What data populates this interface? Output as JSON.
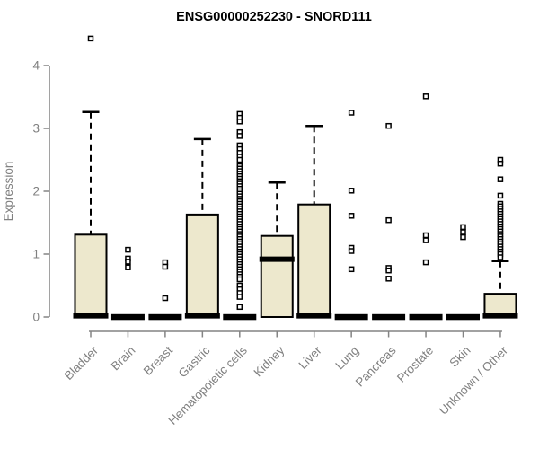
{
  "chart_data": {
    "type": "boxplot",
    "title": "ENSG00000252230 - SNORD111",
    "ylabel": "Expression",
    "xlabel": "",
    "ylim": [
      0,
      4
    ],
    "yticks": [
      0,
      1,
      2,
      3,
      4
    ],
    "grid": false,
    "legend": null,
    "colors": {
      "box_fill": "#EDE8CD",
      "box_stroke": "#000000",
      "axis_line": "#848484",
      "axis_text": "#808080",
      "background": "#FFFFFF",
      "outlier_fill": "#FFFFFF"
    },
    "categories": [
      "Bladder",
      "Brain",
      "Breast",
      "Gastric",
      "Hematopoietic cells",
      "Kidney",
      "Liver",
      "Lung",
      "Pancreas",
      "Prostate",
      "Skin",
      "Unknown / Other"
    ],
    "series": [
      {
        "category": "Bladder",
        "q1": 0,
        "median": 0.02,
        "q3": 1.31,
        "whisker_low": 0,
        "whisker_high": 3.26,
        "outliers": [
          4.43
        ]
      },
      {
        "category": "Brain",
        "q1": 0,
        "median": 0,
        "q3": 0,
        "whisker_low": 0,
        "whisker_high": 0,
        "outliers": [
          1.07,
          0.93,
          0.88,
          0.79
        ]
      },
      {
        "category": "Breast",
        "q1": 0,
        "median": 0,
        "q3": 0,
        "whisker_low": 0,
        "whisker_high": 0,
        "outliers": [
          0.87,
          0.8,
          0.3
        ]
      },
      {
        "category": "Gastric",
        "q1": 0,
        "median": 0.02,
        "q3": 1.63,
        "whisker_low": 0,
        "whisker_high": 2.83,
        "outliers": []
      },
      {
        "category": "Hematopoietic cells",
        "q1": 0,
        "median": 0,
        "q3": 0,
        "whisker_low": 0,
        "whisker_high": 0,
        "outliers": [
          3.23,
          3.17,
          3.11,
          2.94,
          2.88,
          2.73,
          2.67,
          2.61,
          2.55,
          2.5,
          2.4,
          2.36,
          2.32,
          2.28,
          2.24,
          2.2,
          2.16,
          2.12,
          2.08,
          2.04,
          2.0,
          1.96,
          1.92,
          1.88,
          1.84,
          1.8,
          1.76,
          1.72,
          1.68,
          1.64,
          1.6,
          1.56,
          1.52,
          1.48,
          1.44,
          1.4,
          1.36,
          1.32,
          1.28,
          1.24,
          1.2,
          1.16,
          1.12,
          1.08,
          1.04,
          1.0,
          0.96,
          0.92,
          0.88,
          0.84,
          0.8,
          0.76,
          0.72,
          0.68,
          0.64,
          0.6,
          0.5,
          0.44,
          0.38,
          0.32,
          0.16
        ]
      },
      {
        "category": "Kidney",
        "q1": 0,
        "median": 0.92,
        "q3": 1.29,
        "whisker_low": 0,
        "whisker_high": 2.14,
        "outliers": []
      },
      {
        "category": "Liver",
        "q1": 0,
        "median": 0.02,
        "q3": 1.79,
        "whisker_low": 0,
        "whisker_high": 3.04,
        "outliers": []
      },
      {
        "category": "Lung",
        "q1": 0,
        "median": 0,
        "q3": 0,
        "whisker_low": 0,
        "whisker_high": 0,
        "outliers": [
          3.25,
          2.01,
          1.61,
          1.1,
          1.05,
          0.76
        ]
      },
      {
        "category": "Pancreas",
        "q1": 0,
        "median": 0,
        "q3": 0,
        "whisker_low": 0,
        "whisker_high": 0,
        "outliers": [
          3.04,
          1.54,
          0.78,
          0.74,
          0.61
        ]
      },
      {
        "category": "Prostate",
        "q1": 0,
        "median": 0,
        "q3": 0,
        "whisker_low": 0,
        "whisker_high": 0,
        "outliers": [
          3.51,
          1.3,
          1.22,
          0.87
        ]
      },
      {
        "category": "Skin",
        "q1": 0,
        "median": 0,
        "q3": 0,
        "whisker_low": 0,
        "whisker_high": 0,
        "outliers": [
          1.43,
          1.35,
          1.27
        ]
      },
      {
        "category": "Unknown / Other",
        "q1": 0,
        "median": 0.02,
        "q3": 0.37,
        "whisker_low": 0,
        "whisker_high": 0.89,
        "outliers": [
          2.5,
          2.44,
          2.19,
          1.93,
          1.8,
          1.76,
          1.72,
          1.68,
          1.64,
          1.6,
          1.56,
          1.52,
          1.48,
          1.44,
          1.4,
          1.36,
          1.32,
          1.28,
          1.24,
          1.2,
          1.16,
          1.12,
          1.08,
          1.04,
          1.0,
          0.95
        ]
      }
    ]
  }
}
